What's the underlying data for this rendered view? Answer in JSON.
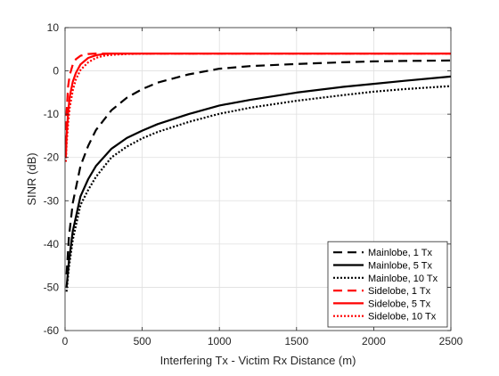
{
  "chart_data": {
    "type": "line",
    "title": "",
    "xlabel": "Interfering Tx - Victim Rx Distance (m)",
    "ylabel": "SINR (dB)",
    "xlim": [
      0,
      2500
    ],
    "ylim": [
      -60,
      10
    ],
    "xticks": [
      0,
      500,
      1000,
      1500,
      2000,
      2500
    ],
    "yticks": [
      10,
      0,
      -10,
      -20,
      -30,
      -40,
      -50,
      -60
    ],
    "grid": true,
    "legend_position": "bottom-right",
    "series": [
      {
        "name": "Mainlobe, 1 Tx",
        "color": "#000000",
        "style": "dashed",
        "x": [
          10,
          25,
          50,
          100,
          150,
          200,
          300,
          400,
          500,
          600,
          800,
          1000,
          1200,
          1500,
          1800,
          2000,
          2200,
          2500
        ],
        "y": [
          -47.0,
          -38.5,
          -30.5,
          -22.0,
          -17.3,
          -13.7,
          -9.1,
          -6.2,
          -4.2,
          -2.7,
          -0.8,
          0.5,
          1.1,
          1.6,
          2.0,
          2.2,
          2.3,
          2.4
        ]
      },
      {
        "name": "Mainlobe, 5 Tx",
        "color": "#000000",
        "style": "solid",
        "x": [
          10,
          25,
          50,
          100,
          150,
          200,
          300,
          400,
          500,
          600,
          800,
          1000,
          1200,
          1500,
          1800,
          2000,
          2200,
          2500
        ],
        "y": [
          -50.0,
          -44.0,
          -37.0,
          -29.0,
          -25.0,
          -22.0,
          -18.0,
          -15.5,
          -13.8,
          -12.3,
          -10.0,
          -8.0,
          -6.7,
          -5.0,
          -3.7,
          -3.0,
          -2.3,
          -1.3
        ]
      },
      {
        "name": "Mainlobe, 10 Tx",
        "color": "#000000",
        "style": "dotted",
        "x": [
          10,
          25,
          50,
          100,
          150,
          200,
          300,
          400,
          500,
          600,
          800,
          1000,
          1200,
          1500,
          1800,
          2000,
          2200,
          2500
        ],
        "y": [
          -51.0,
          -45.5,
          -39.0,
          -31.0,
          -27.5,
          -24.5,
          -20.0,
          -17.5,
          -15.6,
          -14.1,
          -11.8,
          -9.9,
          -8.5,
          -6.9,
          -5.6,
          -4.8,
          -4.2,
          -3.5
        ]
      },
      {
        "name": "Sidelobe, 1 Tx",
        "color": "#ff0000",
        "style": "dashed",
        "x": [
          5,
          10,
          20,
          30,
          50,
          70,
          100,
          150,
          200,
          250,
          300,
          400,
          600,
          1000,
          1500,
          2000,
          2500
        ],
        "y": [
          -17.0,
          -9.5,
          -3.5,
          -1.0,
          1.5,
          2.7,
          3.5,
          3.9,
          4.0,
          4.0,
          4.0,
          4.0,
          4.0,
          4.0,
          4.0,
          4.0,
          4.0
        ]
      },
      {
        "name": "Sidelobe, 5 Tx",
        "color": "#ff0000",
        "style": "solid",
        "x": [
          5,
          10,
          20,
          30,
          50,
          70,
          100,
          150,
          200,
          250,
          300,
          400,
          600,
          1000,
          1500,
          2000,
          2500
        ],
        "y": [
          -20.0,
          -15.0,
          -9.5,
          -6.0,
          -2.5,
          -0.5,
          1.5,
          3.0,
          3.6,
          3.9,
          4.0,
          4.0,
          4.0,
          4.0,
          4.0,
          4.0,
          4.0
        ]
      },
      {
        "name": "Sidelobe, 10 Tx",
        "color": "#ff0000",
        "style": "dotted",
        "x": [
          5,
          10,
          20,
          30,
          50,
          70,
          100,
          150,
          200,
          250,
          300,
          400,
          600,
          1000,
          1500,
          2000,
          2500
        ],
        "y": [
          -21.0,
          -17.0,
          -12.0,
          -8.5,
          -4.5,
          -2.0,
          0.2,
          2.0,
          3.0,
          3.5,
          3.7,
          3.9,
          4.0,
          4.0,
          4.0,
          4.0,
          4.0
        ]
      }
    ]
  }
}
